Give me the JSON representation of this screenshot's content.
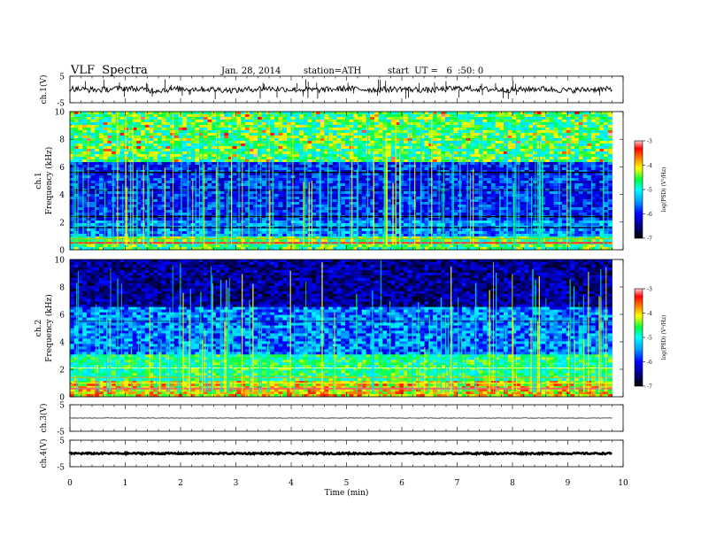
{
  "header": {
    "title": "VLF  Spectra",
    "date": "Jan. 28, 2014",
    "station": "station=ATH",
    "start": "start  UT =   6  :50: 0"
  },
  "chart_data": [
    {
      "type": "line",
      "panel": "ch1-waveform",
      "ylabel": "ch.1(V)",
      "ylim": [
        -5,
        5
      ],
      "yticks": [
        "5",
        "-5"
      ],
      "xlim": [
        0,
        10
      ],
      "x": [
        0,
        0.5,
        1,
        1.5,
        2,
        2.5,
        3,
        3.5,
        4,
        4.5,
        5,
        5.5,
        6,
        6.5,
        7,
        7.5,
        8,
        8.5,
        9,
        9.5,
        9.8
      ],
      "y": [
        0.3,
        -0.2,
        0.5,
        -0.4,
        0.2,
        0.1,
        -0.3,
        0.4,
        0.0,
        -0.2,
        0.3,
        -0.1,
        0.2,
        -0.3,
        0.4,
        0.1,
        -0.2,
        0.3,
        -0.4,
        0.1,
        0.0
      ]
    },
    {
      "type": "heatmap",
      "panel": "ch1-spectrogram",
      "ylabel_top": "ch.1",
      "ylabel": "Frequency  (kHz)",
      "ylim": [
        0,
        10
      ],
      "yticks": [
        "0",
        "2",
        "4",
        "6",
        "8",
        "10"
      ],
      "xlim": [
        0,
        10
      ],
      "colorbar_label": "log(PSD) (V²/Hz)",
      "colorbar_ticks": [
        "-3",
        "-4",
        "-5",
        "-6",
        "-7"
      ],
      "colorbar_range": [
        -7,
        -3
      ],
      "colormap": [
        "#000080",
        "#0000ff",
        "#00a0ff",
        "#00ffff",
        "#00ff40",
        "#ffff00",
        "#ff8000",
        "#ff0000",
        "#ffc0c0"
      ],
      "note_bands_khz": [
        0.5,
        1.0,
        2.0,
        2.4,
        4.3,
        5.6
      ]
    },
    {
      "type": "heatmap",
      "panel": "ch2-spectrogram",
      "ylabel_top": "ch.2",
      "ylabel": "Frequency  (kHz)",
      "ylim": [
        0,
        10
      ],
      "yticks": [
        "0",
        "2",
        "4",
        "6",
        "8",
        "10"
      ],
      "xlim": [
        0,
        10
      ],
      "colorbar_label": "log(PSD) (V²/Hz)",
      "colorbar_ticks": [
        "-3",
        "-4",
        "-5",
        "-6",
        "-7"
      ],
      "colorbar_range": [
        -7,
        -3
      ]
    },
    {
      "type": "line",
      "panel": "ch3-waveform",
      "ylabel": "ch.3(V)",
      "ylim": [
        -5,
        5
      ],
      "yticks": [
        "5",
        "-5"
      ],
      "xlim": [
        0,
        10
      ],
      "x": [
        0,
        9.8
      ],
      "y": [
        0,
        0
      ]
    },
    {
      "type": "line",
      "panel": "ch4-waveform",
      "ylabel": "ch.4(V)",
      "ylim": [
        -5,
        5
      ],
      "yticks": [
        "5",
        "-5"
      ],
      "xlim": [
        0,
        10
      ],
      "x": [
        0,
        9.8
      ],
      "y": [
        0,
        0
      ]
    }
  ],
  "xaxis": {
    "label": "Time  (min)",
    "ticks": [
      "0",
      "1",
      "2",
      "3",
      "4",
      "5",
      "6",
      "7",
      "8",
      "9",
      "10"
    ]
  }
}
